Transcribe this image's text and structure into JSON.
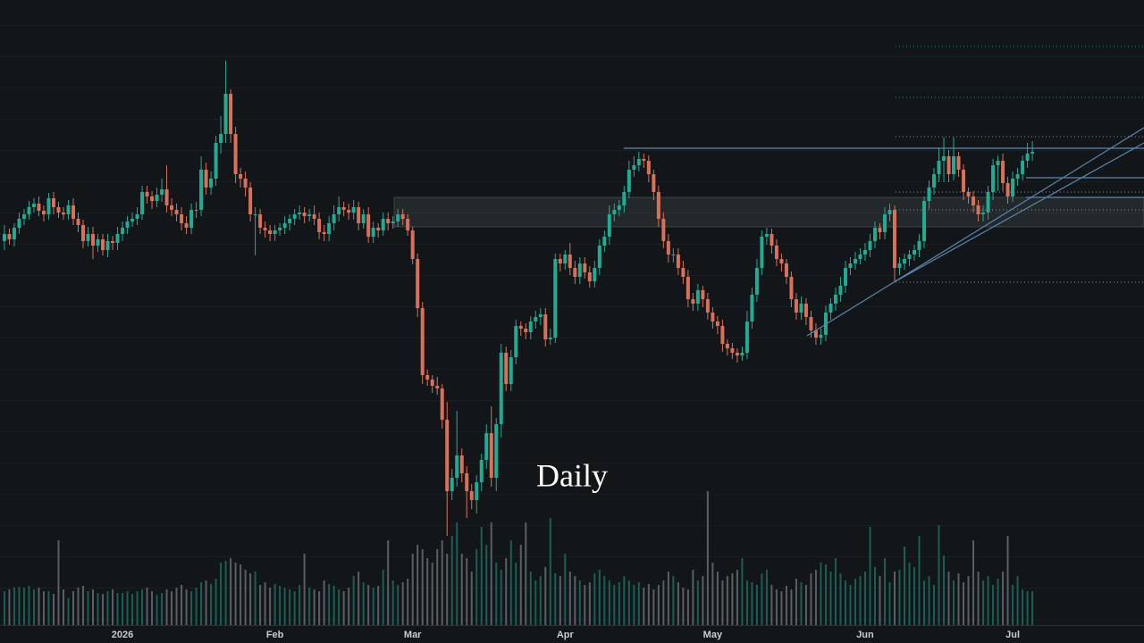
{
  "chart_data": {
    "type": "candlestick",
    "title": "Daily",
    "open": [
      450,
      458,
      452,
      465,
      475,
      480,
      488,
      492,
      484,
      480,
      498,
      488,
      482,
      480,
      490,
      475,
      468,
      450,
      458,
      445,
      452,
      440,
      450,
      448,
      458,
      465,
      472,
      475,
      480,
      505,
      500,
      495,
      502,
      508,
      490,
      485,
      480,
      470,
      465,
      485,
      485,
      530,
      510,
      520,
      560,
      570,
      615,
      570,
      525,
      520,
      510,
      480,
      480,
      465,
      462,
      458,
      462,
      465,
      470,
      475,
      480,
      482,
      478,
      480,
      475,
      460,
      458,
      470,
      480,
      488,
      485,
      482,
      488,
      470,
      480,
      455,
      465,
      462,
      475,
      470,
      472,
      480,
      475,
      462,
      430,
      375,
      300,
      295,
      288,
      285,
      250,
      170,
      185,
      210,
      190,
      170,
      160,
      180,
      205,
      235,
      185,
      245,
      325,
      290,
      320,
      355,
      352,
      348,
      360,
      365,
      368,
      340,
      342,
      430,
      425,
      435,
      420,
      410,
      425,
      415,
      405,
      420,
      445,
      455,
      480,
      485,
      490,
      505,
      530,
      535,
      542,
      540,
      525,
      505,
      475,
      450,
      435,
      435,
      420,
      410,
      385,
      380,
      395,
      385,
      370,
      360,
      355,
      335,
      330,
      325,
      322,
      325,
      360,
      390,
      420,
      455,
      458,
      445,
      430,
      425,
      410,
      385,
      370,
      380,
      365,
      350,
      342,
      345,
      370,
      380,
      390,
      400,
      420,
      425,
      430,
      435,
      440,
      450,
      465,
      460,
      480,
      485,
      420,
      425,
      430,
      435,
      440,
      450,
      495,
      510,
      525,
      540,
      545,
      525,
      545,
      530,
      505,
      500,
      490,
      480,
      482,
      505,
      535,
      540,
      515,
      500,
      520,
      525,
      540,
      548
    ],
    "high": [
      468,
      464,
      470,
      482,
      486,
      495,
      498,
      500,
      490,
      504,
      505,
      494,
      488,
      496,
      498,
      482,
      474,
      466,
      466,
      458,
      458,
      458,
      456,
      466,
      472,
      478,
      482,
      488,
      512,
      512,
      506,
      510,
      520,
      535,
      498,
      492,
      488,
      478,
      492,
      494,
      545,
      538,
      528,
      568,
      590,
      652,
      620,
      578,
      532,
      528,
      516,
      488,
      486,
      472,
      468,
      468,
      470,
      478,
      480,
      486,
      490,
      488,
      486,
      490,
      482,
      468,
      478,
      490,
      500,
      494,
      492,
      496,
      494,
      486,
      488,
      472,
      470,
      482,
      482,
      478,
      486,
      486,
      480,
      466,
      436,
      382,
      306,
      300,
      298,
      290,
      270,
      195,
      260,
      218,
      198,
      178,
      188,
      212,
      245,
      265,
      252,
      335,
      332,
      328,
      362,
      360,
      358,
      366,
      372,
      375,
      375,
      352,
      436,
      436,
      440,
      448,
      428,
      432,
      432,
      422,
      428,
      452,
      462,
      490,
      492,
      496,
      512,
      540,
      545,
      550,
      548,
      546,
      530,
      512,
      482,
      458,
      442,
      442,
      428,
      418,
      392,
      402,
      400,
      392,
      376,
      366,
      362,
      340,
      336,
      330,
      332,
      372,
      398,
      430,
      462,
      465,
      464,
      452,
      436,
      430,
      416,
      392,
      388,
      386,
      372,
      358,
      352,
      378,
      386,
      398,
      410,
      428,
      432,
      438,
      442,
      448,
      458,
      472,
      470,
      488,
      492,
      490,
      432,
      436,
      440,
      446,
      458,
      500,
      518,
      532,
      555,
      566,
      552,
      566,
      550,
      536,
      510,
      506,
      496,
      490,
      512,
      542,
      546,
      548,
      522,
      528,
      532,
      546,
      560,
      562
    ],
    "low": [
      440,
      446,
      444,
      458,
      468,
      474,
      482,
      478,
      472,
      474,
      480,
      476,
      474,
      474,
      468,
      460,
      442,
      444,
      430,
      438,
      434,
      432,
      440,
      440,
      450,
      458,
      466,
      468,
      474,
      492,
      486,
      488,
      494,
      482,
      478,
      472,
      462,
      458,
      458,
      476,
      478,
      502,
      502,
      512,
      548,
      560,
      560,
      515,
      510,
      500,
      472,
      434,
      458,
      454,
      450,
      450,
      456,
      458,
      462,
      468,
      474,
      470,
      472,
      468,
      452,
      450,
      450,
      462,
      472,
      478,
      474,
      474,
      462,
      464,
      448,
      448,
      454,
      456,
      462,
      464,
      466,
      468,
      456,
      424,
      365,
      290,
      288,
      280,
      278,
      240,
      120,
      160,
      175,
      180,
      140,
      150,
      145,
      170,
      195,
      175,
      170,
      230,
      282,
      282,
      312,
      344,
      340,
      340,
      352,
      356,
      332,
      334,
      336,
      416,
      418,
      412,
      402,
      402,
      408,
      398,
      398,
      412,
      438,
      446,
      472,
      478,
      482,
      498,
      522,
      528,
      532,
      516,
      496,
      466,
      442,
      426,
      426,
      412,
      402,
      376,
      372,
      372,
      376,
      362,
      352,
      346,
      326,
      322,
      318,
      314,
      316,
      318,
      352,
      382,
      412,
      446,
      436,
      422,
      416,
      402,
      376,
      362,
      362,
      356,
      342,
      334,
      334,
      338,
      362,
      372,
      382,
      392,
      412,
      418,
      424,
      428,
      432,
      442,
      452,
      452,
      472,
      405,
      412,
      418,
      422,
      428,
      432,
      442,
      486,
      502,
      516,
      516,
      516,
      518,
      522,
      496,
      492,
      482,
      472,
      472,
      474,
      496,
      506,
      506,
      492,
      494,
      512,
      518,
      532,
      540
    ],
    "close": [
      458,
      452,
      465,
      475,
      480,
      488,
      492,
      484,
      480,
      498,
      488,
      482,
      480,
      490,
      475,
      468,
      450,
      458,
      445,
      452,
      440,
      450,
      448,
      458,
      465,
      472,
      475,
      480,
      505,
      500,
      495,
      502,
      508,
      490,
      485,
      480,
      470,
      465,
      485,
      485,
      530,
      510,
      520,
      560,
      570,
      615,
      570,
      525,
      520,
      510,
      480,
      480,
      465,
      462,
      458,
      462,
      465,
      470,
      475,
      480,
      482,
      478,
      480,
      475,
      460,
      458,
      470,
      480,
      488,
      485,
      482,
      488,
      470,
      480,
      455,
      465,
      462,
      475,
      470,
      472,
      480,
      475,
      462,
      430,
      375,
      300,
      295,
      288,
      285,
      250,
      170,
      185,
      210,
      190,
      170,
      160,
      180,
      205,
      235,
      185,
      245,
      325,
      290,
      320,
      355,
      352,
      348,
      360,
      365,
      368,
      340,
      342,
      430,
      425,
      435,
      420,
      410,
      425,
      415,
      405,
      420,
      445,
      455,
      480,
      485,
      490,
      505,
      530,
      535,
      542,
      540,
      525,
      505,
      475,
      450,
      435,
      435,
      420,
      410,
      385,
      380,
      395,
      385,
      370,
      360,
      355,
      335,
      330,
      325,
      322,
      325,
      360,
      390,
      420,
      455,
      458,
      445,
      430,
      425,
      410,
      385,
      370,
      380,
      365,
      350,
      342,
      345,
      370,
      380,
      390,
      400,
      420,
      425,
      430,
      435,
      440,
      450,
      465,
      460,
      480,
      485,
      420,
      425,
      430,
      435,
      440,
      450,
      495,
      510,
      525,
      540,
      545,
      525,
      545,
      530,
      505,
      500,
      490,
      480,
      482,
      505,
      535,
      540,
      515,
      500,
      520,
      525,
      540,
      548,
      550
    ],
    "volume": [
      38,
      40,
      42,
      43,
      42,
      44,
      40,
      42,
      38,
      38,
      35,
      95,
      40,
      30,
      38,
      42,
      44,
      38,
      40,
      36,
      35,
      38,
      40,
      36,
      36,
      38,
      35,
      38,
      40,
      42,
      38,
      34,
      36,
      40,
      38,
      42,
      45,
      40,
      38,
      42,
      48,
      50,
      46,
      52,
      70,
      72,
      75,
      70,
      68,
      62,
      58,
      60,
      45,
      48,
      42,
      46,
      44,
      42,
      40,
      38,
      45,
      80,
      42,
      40,
      38,
      50,
      46,
      44,
      40,
      38,
      42,
      55,
      60,
      48,
      45,
      42,
      44,
      62,
      95,
      50,
      45,
      48,
      52,
      80,
      90,
      85,
      75,
      70,
      85,
      95,
      80,
      100,
      115,
      80,
      75,
      60,
      85,
      110,
      90,
      115,
      70,
      62,
      75,
      95,
      70,
      90,
      115,
      60,
      50,
      55,
      65,
      120,
      58,
      55,
      80,
      60,
      55,
      50,
      45,
      48,
      58,
      62,
      55,
      50,
      45,
      48,
      55,
      50,
      45,
      48,
      42,
      46,
      40,
      45,
      50,
      60,
      55,
      48,
      42,
      40,
      62,
      50,
      55,
      150,
      70,
      60,
      50,
      55,
      58,
      62,
      75,
      50,
      48,
      45,
      58,
      62,
      45,
      40,
      38,
      44,
      40,
      52,
      48,
      45,
      58,
      62,
      70,
      68,
      60,
      75,
      58,
      50,
      45,
      52,
      55,
      60,
      110,
      65,
      55,
      75,
      48,
      60,
      62,
      88,
      70,
      65,
      100,
      50,
      55,
      45,
      112,
      78,
      60,
      50,
      58,
      48,
      55,
      95,
      60,
      50,
      55,
      45,
      52,
      60,
      100,
      45,
      55,
      40,
      38,
      38
    ],
    "up_color": "#22ab94",
    "down_color": "#d9705a",
    "volume_up_color": "#1b5e55",
    "volume_down_color": "#5a5f66",
    "xlim": [
      -0.9,
      231.7
    ],
    "ylim": [
      20,
      720
    ],
    "volume_ylim": [
      0,
      700
    ],
    "xticks": [
      {
        "value": 24,
        "label": "2026"
      },
      {
        "value": 55,
        "label": "Feb"
      },
      {
        "value": 83,
        "label": "Mar"
      },
      {
        "value": 114,
        "label": "Apr"
      },
      {
        "value": 144,
        "label": "May"
      },
      {
        "value": 175,
        "label": "Jun"
      },
      {
        "value": 205,
        "label": "Jul"
      }
    ]
  }
}
